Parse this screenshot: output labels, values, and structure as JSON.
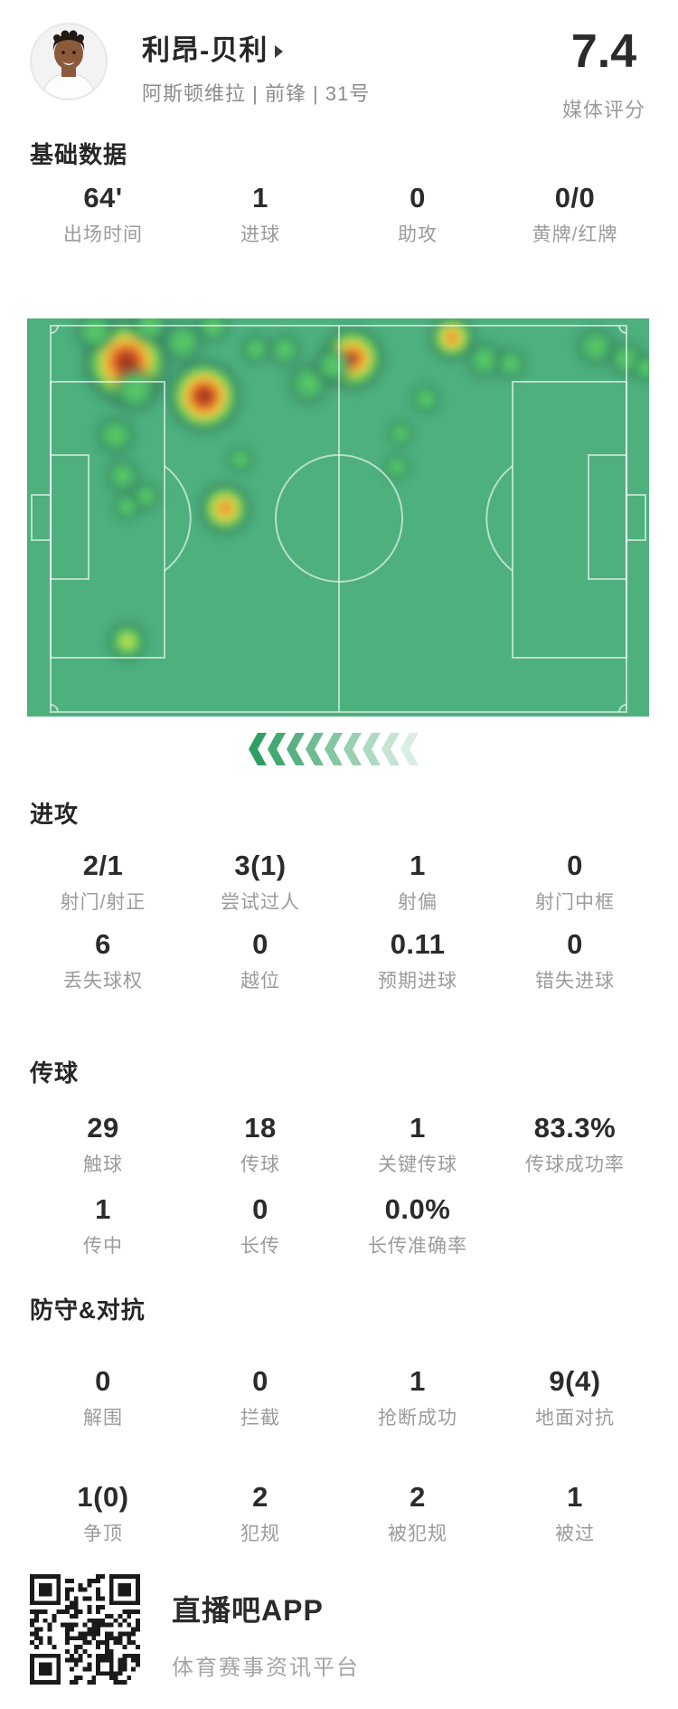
{
  "header": {
    "player_name": "利昂-贝利",
    "name_arrow_icon": "arrow-right-triangle",
    "team_info": "阿斯顿维拉 | 前锋 | 31号",
    "rating": "7.4",
    "rating_label": "媒体评分"
  },
  "sections": {
    "basic": {
      "title": "基础数据",
      "rows": [
        [
          {
            "value": "64'",
            "label": "出场时间"
          },
          {
            "value": "1",
            "label": "进球"
          },
          {
            "value": "0",
            "label": "助攻"
          },
          {
            "value": "0/0",
            "label": "黄牌/红牌"
          }
        ]
      ]
    },
    "attack": {
      "title": "进攻",
      "rows": [
        [
          {
            "value": "2/1",
            "label": "射门/射正"
          },
          {
            "value": "3(1)",
            "label": "尝试过人"
          },
          {
            "value": "1",
            "label": "射偏"
          },
          {
            "value": "0",
            "label": "射门中框"
          }
        ],
        [
          {
            "value": "6",
            "label": "丢失球权"
          },
          {
            "value": "0",
            "label": "越位"
          },
          {
            "value": "0.11",
            "label": "预期进球"
          },
          {
            "value": "0",
            "label": "错失进球"
          }
        ]
      ]
    },
    "passing": {
      "title": "传球",
      "rows": [
        [
          {
            "value": "29",
            "label": "触球"
          },
          {
            "value": "18",
            "label": "传球"
          },
          {
            "value": "1",
            "label": "关键传球"
          },
          {
            "value": "83.3%",
            "label": "传球成功率"
          }
        ],
        [
          {
            "value": "1",
            "label": "传中"
          },
          {
            "value": "0",
            "label": "长传"
          },
          {
            "value": "0.0%",
            "label": "长传准确率"
          },
          {
            "value": "",
            "label": ""
          }
        ]
      ]
    },
    "defense": {
      "title": "防守&对抗",
      "rows": [
        [
          {
            "value": "0",
            "label": "解围"
          },
          {
            "value": "0",
            "label": "拦截"
          },
          {
            "value": "1",
            "label": "抢断成功"
          },
          {
            "value": "9(4)",
            "label": "地面对抗"
          }
        ],
        [
          {
            "value": "1(0)",
            "label": "争顶"
          },
          {
            "value": "2",
            "label": "犯规"
          },
          {
            "value": "2",
            "label": "被犯规"
          },
          {
            "value": "1",
            "label": "被过"
          }
        ]
      ]
    }
  },
  "heatmap": {
    "field_color": "#4db07d",
    "line_color": "rgba(255,255,255,0.6)",
    "palette": {
      "hot": [
        [
          0,
          "#8c2c18",
          1
        ],
        [
          0.16,
          "#bb4420",
          1
        ],
        [
          0.3,
          "#e8762c",
          1
        ],
        [
          0.42,
          "#f6c03c",
          1
        ],
        [
          0.55,
          "#a6d84d",
          1
        ],
        [
          0.68,
          "#52bd5f",
          1
        ],
        [
          0.83,
          "#2e6b54",
          0.45
        ],
        [
          1,
          "#2e6b54",
          0
        ]
      ],
      "warmhot": [
        [
          0,
          "#a63a1c",
          1
        ],
        [
          0.2,
          "#e8762c",
          1
        ],
        [
          0.35,
          "#f6c03c",
          1
        ],
        [
          0.5,
          "#a6d84d",
          1
        ],
        [
          0.66,
          "#52bd5f",
          1
        ],
        [
          0.83,
          "#2e6b54",
          0.45
        ],
        [
          1,
          "#2e6b54",
          0
        ]
      ],
      "warm": [
        [
          0,
          "#e07a28",
          1
        ],
        [
          0.22,
          "#f2b83a",
          1
        ],
        [
          0.4,
          "#b8dc4e",
          1
        ],
        [
          0.58,
          "#57c05e",
          1
        ],
        [
          0.8,
          "#2e6b54",
          0.4
        ],
        [
          1,
          "#2e6b54",
          0
        ]
      ],
      "yellow": [
        [
          0,
          "#d3e74b",
          1
        ],
        [
          0.3,
          "#8ad455",
          1
        ],
        [
          0.55,
          "#46b666",
          1
        ],
        [
          0.8,
          "#2e6b54",
          0.35
        ],
        [
          1,
          "#2e6b54",
          0
        ]
      ],
      "green": [
        [
          0,
          "#5fce60",
          1
        ],
        [
          0.45,
          "#49b76b",
          1
        ],
        [
          0.75,
          "#2e6b54",
          0.3
        ],
        [
          1,
          "#2e6b54",
          0
        ]
      ]
    },
    "blobs": [
      [
        "hot",
        110,
        48,
        54
      ],
      [
        "hot",
        196,
        86,
        46
      ],
      [
        "warmhot",
        360,
        44,
        40
      ],
      [
        "warm",
        219,
        210,
        34
      ],
      [
        "warm",
        470,
        21,
        30
      ],
      [
        "yellow",
        111,
        357,
        26
      ],
      [
        "green",
        75,
        14,
        28
      ],
      [
        "green",
        136,
        7,
        27
      ],
      [
        "green",
        172,
        26,
        29
      ],
      [
        "green",
        206,
        9,
        23
      ],
      [
        "green",
        253,
        34,
        21
      ],
      [
        "green",
        120,
        79,
        31
      ],
      [
        "green",
        98,
        129,
        27
      ],
      [
        "green",
        106,
        174,
        24
      ],
      [
        "green",
        131,
        197,
        21
      ],
      [
        "green",
        110,
        208,
        20
      ],
      [
        "green",
        236,
        156,
        19
      ],
      [
        "green",
        285,
        35,
        23
      ],
      [
        "green",
        312,
        72,
        29
      ],
      [
        "green",
        338,
        52,
        26
      ],
      [
        "green",
        506,
        46,
        26
      ],
      [
        "green",
        535,
        50,
        22
      ],
      [
        "green",
        441,
        89,
        21
      ],
      [
        "green",
        413,
        127,
        19
      ],
      [
        "green",
        409,
        164,
        19
      ],
      [
        "green",
        629,
        31,
        27
      ],
      [
        "green",
        663,
        45,
        25
      ],
      [
        "green",
        685,
        55,
        20
      ]
    ]
  },
  "chevrons": {
    "count": 9,
    "color": "#2f9e63",
    "direction": "left"
  },
  "footer": {
    "app_name": "直播吧APP",
    "app_desc": "体育赛事资讯平台",
    "qr_icon": "qr-code"
  }
}
